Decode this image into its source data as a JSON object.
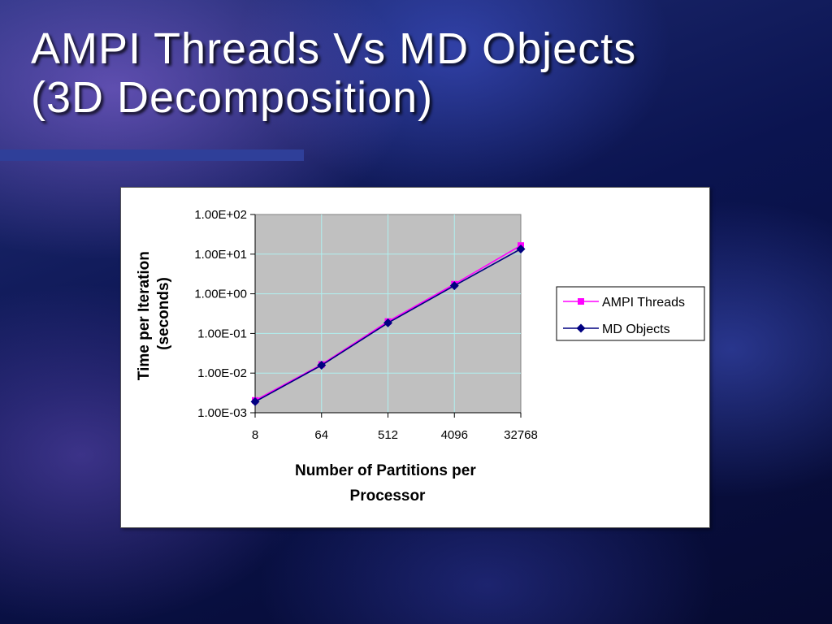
{
  "slide": {
    "title_line1": "AMPI Threads Vs MD Objects",
    "title_line2": "(3D Decomposition)"
  },
  "colors": {
    "ampi": "#ff00ff",
    "md": "#000080",
    "plot_bg": "#c0c0c0",
    "grid": "#b0f0f0"
  },
  "chart_data": {
    "type": "line",
    "x_scale": "log2",
    "y_scale": "log10",
    "categories": [
      "8",
      "64",
      "512",
      "4096",
      "32768"
    ],
    "x": [
      8,
      64,
      512,
      4096,
      32768
    ],
    "xlabel_lines": [
      "Number of Partitions per",
      "Processor"
    ],
    "ylabel_lines": [
      "Time per Iteration",
      "(seconds)"
    ],
    "yticks": [
      "1.00E+02",
      "1.00E+01",
      "1.00E+00",
      "1.00E-01",
      "1.00E-02",
      "1.00E-03"
    ],
    "ylim": [
      0.001,
      100
    ],
    "grid": true,
    "legend_position": "right",
    "series": [
      {
        "name": "AMPI Threads",
        "marker": "square",
        "values": [
          0.00205,
          0.0165,
          0.2,
          1.75,
          16.5
        ]
      },
      {
        "name": "MD Objects",
        "marker": "diamond",
        "values": [
          0.0019,
          0.0158,
          0.185,
          1.6,
          13.5
        ]
      }
    ]
  }
}
